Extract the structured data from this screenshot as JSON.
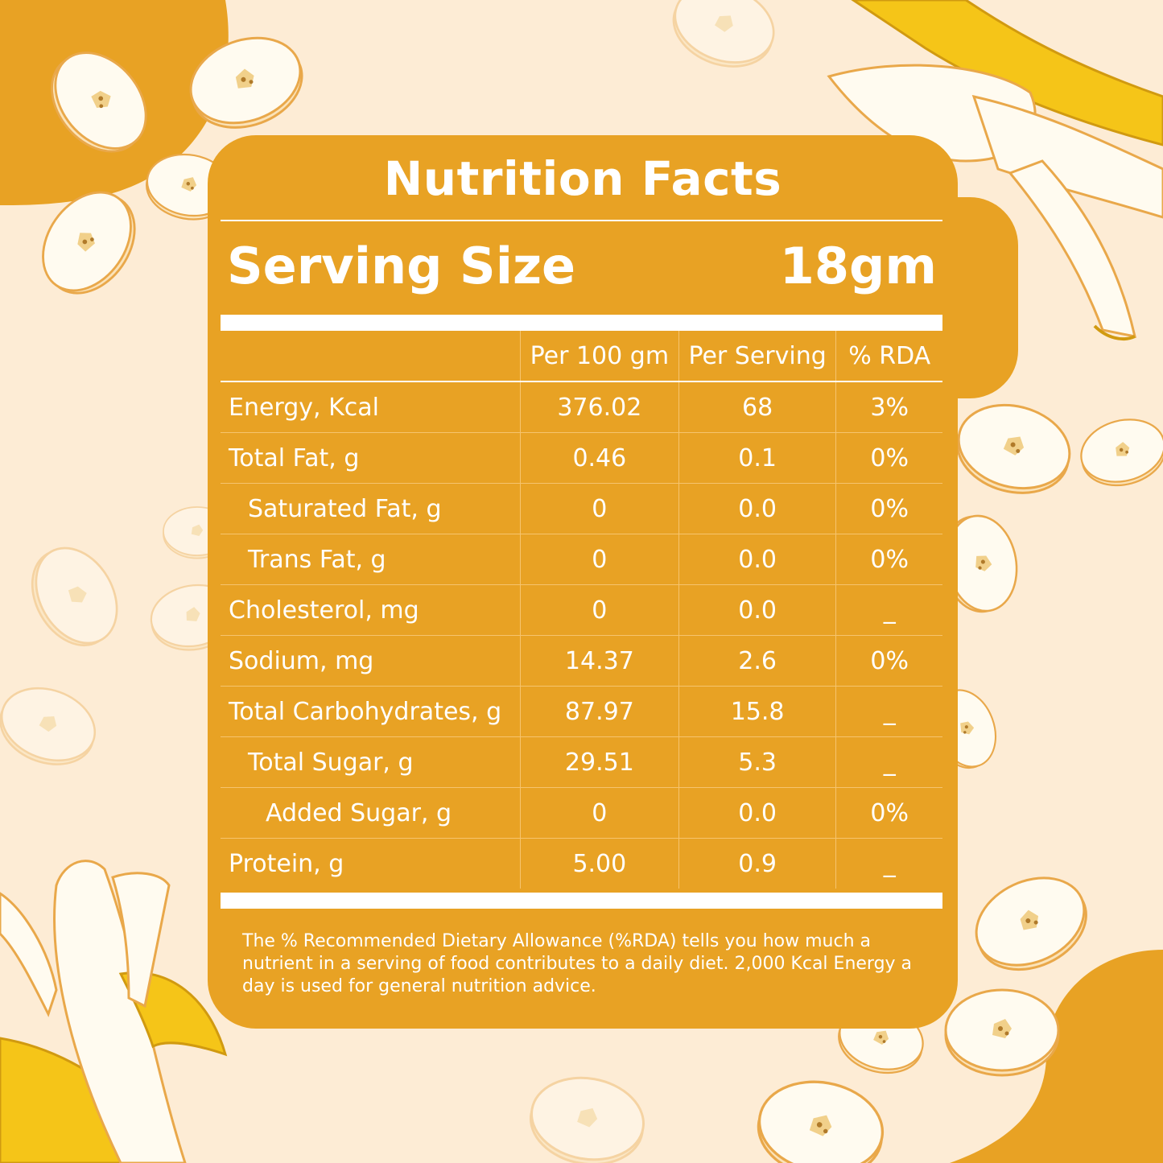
{
  "title": "Nutrition Facts",
  "serving": {
    "label": "Serving Size",
    "value": "18gm"
  },
  "columns": [
    "",
    "Per 100 gm",
    "Per Serving",
    "% RDA"
  ],
  "rows": [
    {
      "name": "Energy, Kcal",
      "per100": "376.02",
      "perServing": "68",
      "rda": "3%",
      "indent": 0
    },
    {
      "name": "Total Fat, g",
      "per100": "0.46",
      "perServing": "0.1",
      "rda": "0%",
      "indent": 0
    },
    {
      "name": "Saturated Fat, g",
      "per100": "0",
      "perServing": "0.0",
      "rda": "0%",
      "indent": 1
    },
    {
      "name": "Trans Fat, g",
      "per100": "0",
      "perServing": "0.0",
      "rda": "0%",
      "indent": 1
    },
    {
      "name": "Cholesterol, mg",
      "per100": "0",
      "perServing": "0.0",
      "rda": "_",
      "indent": 0
    },
    {
      "name": "Sodium, mg",
      "per100": "14.37",
      "perServing": "2.6",
      "rda": "0%",
      "indent": 0
    },
    {
      "name": "Total Carbohydrates, g",
      "per100": "87.97",
      "perServing": "15.8",
      "rda": "_",
      "indent": 0
    },
    {
      "name": "Total Sugar, g",
      "per100": "29.51",
      "perServing": "5.3",
      "rda": "_",
      "indent": 1
    },
    {
      "name": "Added Sugar, g",
      "per100": "0",
      "perServing": "0.0",
      "rda": "0%",
      "indent": 2
    },
    {
      "name": "Protein, g",
      "per100": "5.00",
      "perServing": "0.9",
      "rda": "_",
      "indent": 0
    }
  ],
  "footnote": "The % Recommended Dietary Allowance (%RDA) tells you how much a nutrient in a serving of food contributes to a daily diet. 2,000 Kcal Energy a day is used for general nutrition advice.",
  "colors": {
    "accent": "#e8a224",
    "background": "#fdecd5",
    "banana_peel": "#f5c518",
    "banana_flesh": "#fffbf0"
  }
}
